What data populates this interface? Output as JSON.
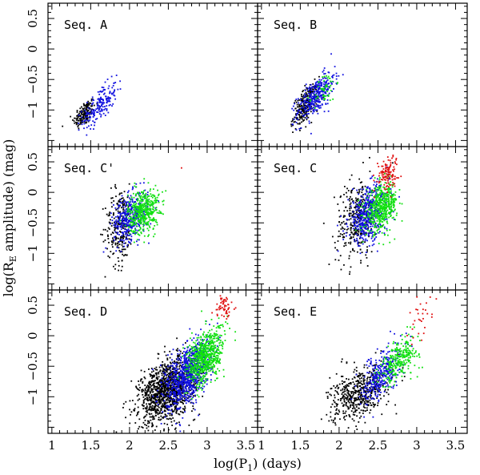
{
  "chart_data": {
    "type": "scatter",
    "xlabel_main": "log(P",
    "xlabel_sub": "1",
    "xlabel_tail": ") (days)",
    "ylabel_main": "log(R",
    "ylabel_sub": "E",
    "ylabel_tail": " amplitude) (mag)",
    "xlim": [
      0.95,
      3.65
    ],
    "ylim_top": [
      -1.6,
      0.75
    ],
    "ylim_bottom": [
      -1.6,
      0.75
    ],
    "x_ticks_major": [
      "1",
      "1.5",
      "2",
      "2.5",
      "3",
      "3.5"
    ],
    "y_ticks_major": [
      "0.5",
      "0",
      "−0.5",
      "−1"
    ],
    "colors": {
      "black": "#000000",
      "blue": "#1010e0",
      "green": "#10e010",
      "red": "#e01010"
    },
    "panels": [
      {
        "label": "Seq. A",
        "clusters": [
          {
            "color": "black",
            "n": 160,
            "cx": 1.42,
            "cy": -1.06,
            "sx": 0.07,
            "sy": 0.1,
            "slope": 0.9
          },
          {
            "color": "blue",
            "n": 190,
            "cx": 1.62,
            "cy": -0.92,
            "sx": 0.11,
            "sy": 0.13,
            "slope": 1.1
          }
        ]
      },
      {
        "label": "Seq. B",
        "clusters": [
          {
            "color": "black",
            "n": 260,
            "cx": 1.57,
            "cy": -0.92,
            "sx": 0.08,
            "sy": 0.13,
            "slope": 1.2
          },
          {
            "color": "blue",
            "n": 330,
            "cx": 1.7,
            "cy": -0.78,
            "sx": 0.12,
            "sy": 0.14,
            "slope": 1.1
          },
          {
            "color": "green",
            "n": 50,
            "cx": 1.82,
            "cy": -0.66,
            "sx": 0.07,
            "sy": 0.13,
            "slope": 0.8
          }
        ]
      },
      {
        "label": "Seq. C'",
        "clusters": [
          {
            "color": "black",
            "n": 230,
            "cx": 1.87,
            "cy": -0.55,
            "sx": 0.09,
            "sy": 0.32,
            "slope": 0.4
          },
          {
            "color": "blue",
            "n": 420,
            "cx": 2.02,
            "cy": -0.4,
            "sx": 0.11,
            "sy": 0.19,
            "slope": 0.5
          },
          {
            "color": "green",
            "n": 430,
            "cx": 2.18,
            "cy": -0.3,
            "sx": 0.1,
            "sy": 0.18,
            "slope": 0.4
          },
          {
            "color": "red",
            "n": 1,
            "cx": 2.67,
            "cy": 0.4,
            "sx": 0.0,
            "sy": 0.0,
            "slope": 0
          }
        ]
      },
      {
        "label": "Seq. C",
        "clusters": [
          {
            "color": "black",
            "n": 330,
            "cx": 2.22,
            "cy": -0.45,
            "sx": 0.13,
            "sy": 0.32,
            "slope": 0.5
          },
          {
            "color": "blue",
            "n": 480,
            "cx": 2.38,
            "cy": -0.35,
            "sx": 0.13,
            "sy": 0.22,
            "slope": 0.6
          },
          {
            "color": "green",
            "n": 480,
            "cx": 2.55,
            "cy": -0.25,
            "sx": 0.1,
            "sy": 0.18,
            "slope": 0.6
          },
          {
            "color": "red",
            "n": 120,
            "cx": 2.62,
            "cy": 0.32,
            "sx": 0.07,
            "sy": 0.13,
            "slope": 0.5
          }
        ]
      },
      {
        "label": "Seq. D",
        "clusters": [
          {
            "color": "black",
            "n": 1250,
            "cx": 2.48,
            "cy": -0.9,
            "sx": 0.18,
            "sy": 0.24,
            "slope": 0.5
          },
          {
            "color": "blue",
            "n": 850,
            "cx": 2.75,
            "cy": -0.62,
            "sx": 0.14,
            "sy": 0.24,
            "slope": 1.0
          },
          {
            "color": "green",
            "n": 650,
            "cx": 2.98,
            "cy": -0.35,
            "sx": 0.12,
            "sy": 0.21,
            "slope": 0.8
          },
          {
            "color": "red",
            "n": 55,
            "cx": 3.22,
            "cy": 0.47,
            "sx": 0.06,
            "sy": 0.1,
            "slope": 0.5
          }
        ]
      },
      {
        "label": "Seq. E",
        "clusters": [
          {
            "color": "black",
            "n": 520,
            "cx": 2.25,
            "cy": -0.95,
            "sx": 0.18,
            "sy": 0.2,
            "slope": 0.5
          },
          {
            "color": "blue",
            "n": 320,
            "cx": 2.55,
            "cy": -0.62,
            "sx": 0.12,
            "sy": 0.18,
            "slope": 1.1
          },
          {
            "color": "green",
            "n": 280,
            "cx": 2.78,
            "cy": -0.38,
            "sx": 0.12,
            "sy": 0.16,
            "slope": 0.9
          },
          {
            "color": "red",
            "n": 30,
            "cx": 3.05,
            "cy": 0.3,
            "sx": 0.1,
            "sy": 0.22,
            "slope": 1.0
          }
        ]
      }
    ]
  }
}
